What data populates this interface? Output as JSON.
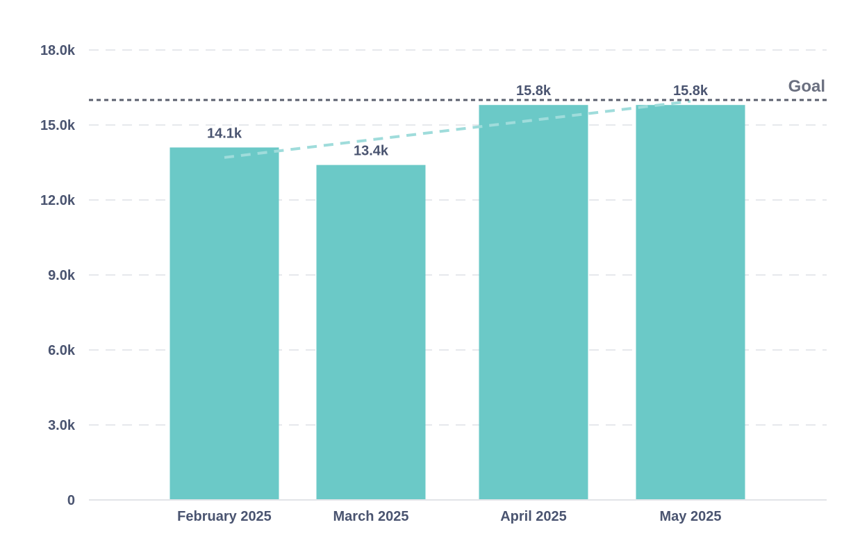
{
  "chart_data": {
    "type": "bar",
    "categories": [
      "February 2025",
      "March 2025",
      "April 2025",
      "May 2025"
    ],
    "values": [
      14100,
      13400,
      15800,
      15800
    ],
    "data_labels": [
      "14.1k",
      "13.4k",
      "15.8k",
      "15.8k"
    ],
    "ylim": [
      0,
      18000
    ],
    "y_ticks": [
      0,
      3000,
      6000,
      9000,
      12000,
      15000,
      18000
    ],
    "y_tick_labels": [
      "0",
      "3.0k",
      "6.0k",
      "9.0k",
      "12.0k",
      "15.0k",
      "18.0k"
    ],
    "goal": {
      "label": "Goal",
      "value": 16000
    },
    "trendline": {
      "start": 13700,
      "end": 15950,
      "style": "dashed"
    },
    "grid": true,
    "colors": {
      "bar": "#6bc9c7",
      "trend": "#9fdcdb",
      "goal_line": "#5a5f6e",
      "grid": "#e6e8ec",
      "axis": "#e2e4e8"
    }
  }
}
